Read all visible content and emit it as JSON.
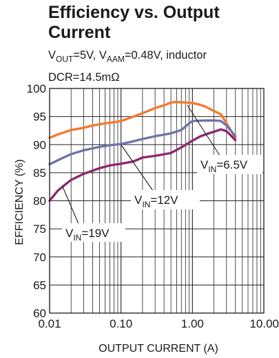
{
  "chart_data": {
    "type": "line",
    "title": "Efficiency vs. Output Current",
    "subtitle": {
      "line1": {
        "v_sym": "V",
        "out_sub": "OUT",
        "mid": "=5V, V",
        "aam_sub": "AAM",
        "end": "=0.48V, inductor"
      },
      "line2": "DCR=14.5mΩ"
    },
    "xlabel": "OUTPUT CURRENT (A)",
    "ylabel": "EFFICIENCY (%)",
    "x_scale": "log",
    "xlim": [
      0.01,
      10
    ],
    "ylim": [
      60,
      100
    ],
    "x_ticks": [
      {
        "value": 0.01,
        "label": "0.01"
      },
      {
        "value": 0.1,
        "label": "0.10"
      },
      {
        "value": 1,
        "label": "1.00"
      },
      {
        "value": 10,
        "label": "10.00"
      }
    ],
    "y_ticks": [
      {
        "value": 60,
        "label": "60"
      },
      {
        "value": 65,
        "label": "65"
      },
      {
        "value": 70,
        "label": "70"
      },
      {
        "value": 75,
        "label": "75"
      },
      {
        "value": 80,
        "label": "80"
      },
      {
        "value": 85,
        "label": "85"
      },
      {
        "value": 90,
        "label": "90"
      },
      {
        "value": 95,
        "label": "95"
      },
      {
        "value": 100,
        "label": "100"
      }
    ],
    "grid": true,
    "series": [
      {
        "name": "VIN=6.5V",
        "color": "#f47a30",
        "points": [
          [
            0.01,
            91.2
          ],
          [
            0.013,
            91.8
          ],
          [
            0.017,
            92.3
          ],
          [
            0.02,
            92.6
          ],
          [
            0.03,
            93.0
          ],
          [
            0.04,
            93.4
          ],
          [
            0.06,
            93.8
          ],
          [
            0.08,
            94.0
          ],
          [
            0.1,
            94.2
          ],
          [
            0.15,
            95.0
          ],
          [
            0.2,
            95.6
          ],
          [
            0.3,
            96.5
          ],
          [
            0.4,
            97.0
          ],
          [
            0.5,
            97.5
          ],
          [
            0.6,
            97.6
          ],
          [
            0.8,
            97.5
          ],
          [
            1.0,
            97.4
          ],
          [
            1.2,
            97.2
          ],
          [
            1.5,
            96.8
          ],
          [
            2.0,
            96.0
          ],
          [
            2.5,
            95.4
          ],
          [
            3.0,
            93.8
          ],
          [
            4.0,
            91.2
          ]
        ]
      },
      {
        "name": "VIN=12V",
        "color": "#6f74aa",
        "points": [
          [
            0.01,
            86.5
          ],
          [
            0.015,
            87.6
          ],
          [
            0.02,
            88.3
          ],
          [
            0.03,
            89.0
          ],
          [
            0.05,
            89.6
          ],
          [
            0.07,
            89.9
          ],
          [
            0.1,
            90.1
          ],
          [
            0.15,
            90.6
          ],
          [
            0.2,
            91.0
          ],
          [
            0.3,
            91.5
          ],
          [
            0.5,
            92.0
          ],
          [
            0.7,
            92.6
          ],
          [
            0.9,
            93.8
          ],
          [
            1.0,
            94.2
          ],
          [
            1.5,
            94.3
          ],
          [
            2.0,
            94.3
          ],
          [
            2.5,
            94.2
          ],
          [
            3.0,
            93.4
          ],
          [
            4.0,
            91.5
          ]
        ]
      },
      {
        "name": "VIN=19V",
        "color": "#8c2a6e",
        "points": [
          [
            0.01,
            80.0
          ],
          [
            0.013,
            81.8
          ],
          [
            0.017,
            83.0
          ],
          [
            0.02,
            83.7
          ],
          [
            0.03,
            84.8
          ],
          [
            0.05,
            85.8
          ],
          [
            0.07,
            86.3
          ],
          [
            0.1,
            86.6
          ],
          [
            0.15,
            87.0
          ],
          [
            0.2,
            87.7
          ],
          [
            0.3,
            88.0
          ],
          [
            0.5,
            88.5
          ],
          [
            0.7,
            89.5
          ],
          [
            1.0,
            90.7
          ],
          [
            1.3,
            91.5
          ],
          [
            1.6,
            91.9
          ],
          [
            2.0,
            92.3
          ],
          [
            2.5,
            92.7
          ],
          [
            3.0,
            92.4
          ],
          [
            4.0,
            90.8
          ]
        ]
      }
    ],
    "annotations": [
      {
        "series": "VIN=6.5V",
        "v_sym": "V",
        "sub": "IN",
        "value": "=6.5V",
        "arrow_to": [
          0.85,
          97.0
        ]
      },
      {
        "series": "VIN=12V",
        "v_sym": "V",
        "sub": "IN",
        "value": "=12V",
        "arrow_to": [
          0.1,
          90.0
        ]
      },
      {
        "series": "VIN=19V",
        "v_sym": "V",
        "sub": "IN",
        "value": "=19V",
        "arrow_to": [
          0.015,
          82.7
        ]
      }
    ]
  }
}
